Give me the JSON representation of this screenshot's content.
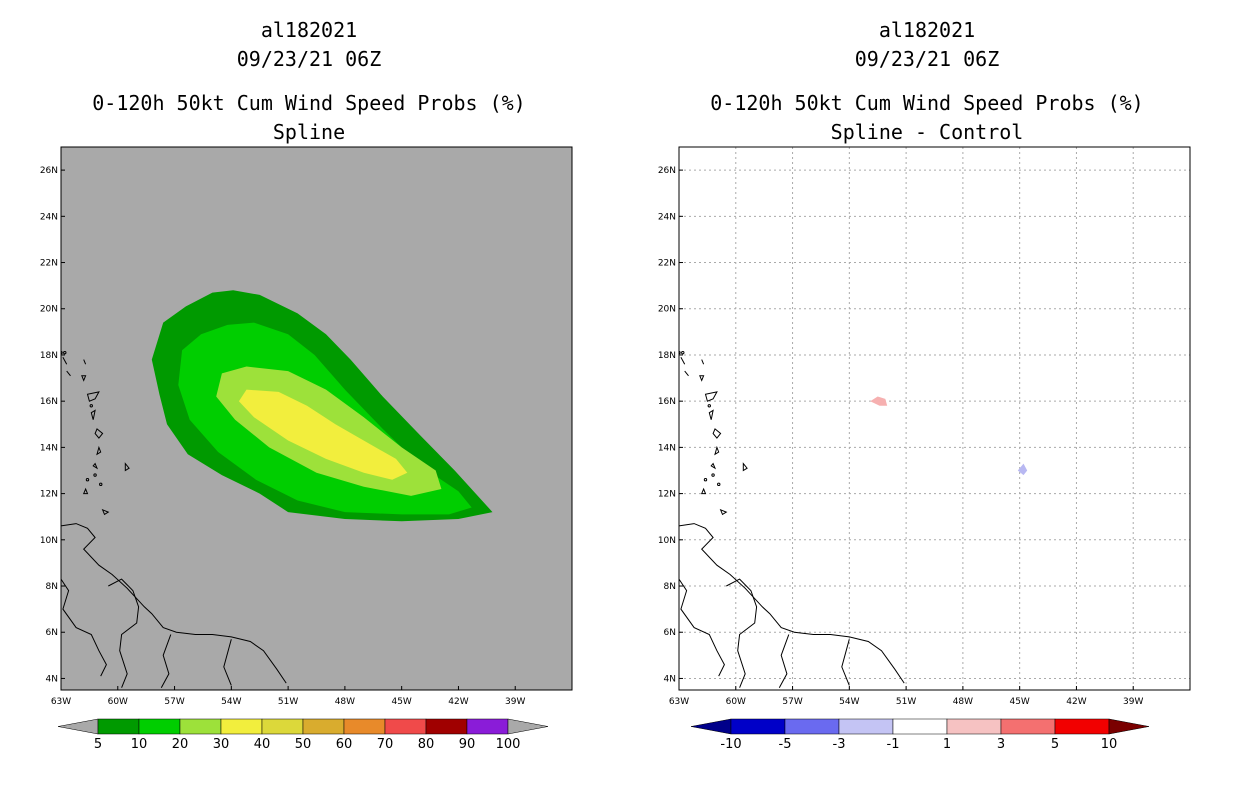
{
  "left": {
    "title_line1": "al182021",
    "title_line2": "09/23/21 06Z",
    "title_line3": "0-120h 50kt Cum Wind Speed Probs (%)",
    "title_line4": "Spline"
  },
  "right": {
    "title_line1": "al182021",
    "title_line2": "09/23/21 06Z",
    "title_line3": "0-120h 50kt Cum Wind Speed Probs (%)",
    "title_line4": "Spline - Control"
  },
  "chart_data": [
    {
      "type": "heatmap",
      "title": "0-120h 50kt Cum Wind Speed Probs (%) Spline",
      "variable": "cumulative 50kt wind speed probability (%)",
      "xlim": [
        -63,
        -36
      ],
      "ylim": [
        3.5,
        27
      ],
      "x_ticks": [
        -63,
        -60,
        -57,
        -54,
        -51,
        -48,
        -45,
        -42,
        -39
      ],
      "x_tick_labels": [
        "63W",
        "60W",
        "57W",
        "54W",
        "51W",
        "48W",
        "45W",
        "42W",
        "39W"
      ],
      "y_ticks": [
        4,
        6,
        8,
        10,
        12,
        14,
        16,
        18,
        20,
        22,
        24,
        26
      ],
      "y_tick_labels": [
        "4N",
        "6N",
        "8N",
        "10N",
        "12N",
        "14N",
        "16N",
        "18N",
        "20N",
        "22N",
        "24N",
        "26N"
      ],
      "background_color": "#a9a9a9",
      "contour_levels": [
        5,
        10,
        20,
        30
      ],
      "contours": [
        {
          "level": 5,
          "color": "#009a00",
          "points": [
            [
              -53.9,
              20.8
            ],
            [
              -52.5,
              20.6
            ],
            [
              -50.5,
              19.8
            ],
            [
              -49,
              18.9
            ],
            [
              -47.7,
              17.8
            ],
            [
              -46,
              16.2
            ],
            [
              -44,
              14.5
            ],
            [
              -42.2,
              13
            ],
            [
              -40.2,
              11.2
            ],
            [
              -42,
              10.9
            ],
            [
              -45,
              10.8
            ],
            [
              -48,
              10.9
            ],
            [
              -51,
              11.2
            ],
            [
              -52.5,
              12
            ],
            [
              -54.5,
              12.8
            ],
            [
              -56.3,
              13.7
            ],
            [
              -57.4,
              15
            ],
            [
              -57.8,
              16.3
            ],
            [
              -58.2,
              17.8
            ],
            [
              -57.6,
              19.4
            ],
            [
              -56.4,
              20.1
            ],
            [
              -55,
              20.7
            ]
          ]
        },
        {
          "level": 10,
          "color": "#00ce00",
          "points": [
            [
              -52.8,
              19.4
            ],
            [
              -51,
              18.9
            ],
            [
              -49.6,
              18
            ],
            [
              -48,
              16.5
            ],
            [
              -46,
              14.8
            ],
            [
              -44,
              13.2
            ],
            [
              -42,
              12.1
            ],
            [
              -41.3,
              11.4
            ],
            [
              -42.5,
              11.1
            ],
            [
              -45,
              11.1
            ],
            [
              -48,
              11.2
            ],
            [
              -50.5,
              11.7
            ],
            [
              -52.7,
              12.6
            ],
            [
              -54.7,
              13.8
            ],
            [
              -56.2,
              15.2
            ],
            [
              -56.8,
              16.7
            ],
            [
              -56.6,
              18.2
            ],
            [
              -55.6,
              18.9
            ],
            [
              -54.2,
              19.3
            ]
          ]
        },
        {
          "level": 20,
          "color": "#9de13a",
          "points": [
            [
              -53.2,
              17.5
            ],
            [
              -51,
              17.3
            ],
            [
              -49,
              16.5
            ],
            [
              -47,
              15.3
            ],
            [
              -45,
              14
            ],
            [
              -43.2,
              13
            ],
            [
              -42.9,
              12.2
            ],
            [
              -44.5,
              11.9
            ],
            [
              -47,
              12.3
            ],
            [
              -49.5,
              12.9
            ],
            [
              -52,
              14
            ],
            [
              -53.8,
              15.2
            ],
            [
              -54.8,
              16.2
            ],
            [
              -54.5,
              17.2
            ]
          ]
        },
        {
          "level": 30,
          "color": "#f2ee3d",
          "points": [
            [
              -53.2,
              16.5
            ],
            [
              -51.5,
              16.4
            ],
            [
              -50,
              15.8
            ],
            [
              -48.5,
              15
            ],
            [
              -46.8,
              14.2
            ],
            [
              -45.3,
              13.5
            ],
            [
              -44.7,
              12.9
            ],
            [
              -45.5,
              12.6
            ],
            [
              -47,
              12.9
            ],
            [
              -49,
              13.5
            ],
            [
              -51,
              14.3
            ],
            [
              -52.8,
              15.3
            ],
            [
              -53.6,
              16
            ]
          ]
        }
      ],
      "colorbar": {
        "labels": [
          "5",
          "10",
          "20",
          "30",
          "40",
          "50",
          "60",
          "70",
          "80",
          "90",
          "100"
        ],
        "colors": [
          "#009a00",
          "#00ce00",
          "#9de13a",
          "#f2ee3d",
          "#dcd83a",
          "#d9ac2e",
          "#e88a2a",
          "#f04a4a",
          "#a00000",
          "#8a1cd8"
        ],
        "under_color": "#a9a9a9",
        "over_color": "#a9a9a9"
      }
    },
    {
      "type": "heatmap",
      "title": "0-120h 50kt Cum Wind Speed Probs (%) Spline - Control",
      "variable": "difference in cumulative 50kt wind speed probability (%)",
      "xlim": [
        -63,
        -36
      ],
      "ylim": [
        3.5,
        27
      ],
      "x_ticks": [
        -63,
        -60,
        -57,
        -54,
        -51,
        -48,
        -45,
        -42,
        -39
      ],
      "x_tick_labels": [
        "63W",
        "60W",
        "57W",
        "54W",
        "51W",
        "48W",
        "45W",
        "42W",
        "39W"
      ],
      "y_ticks": [
        4,
        6,
        8,
        10,
        12,
        14,
        16,
        18,
        20,
        22,
        24,
        26
      ],
      "y_tick_labels": [
        "4N",
        "6N",
        "8N",
        "10N",
        "12N",
        "14N",
        "16N",
        "18N",
        "20N",
        "22N",
        "24N",
        "26N"
      ],
      "background_color": "#ffffff",
      "grid": true,
      "features": [
        {
          "description": "positive difference patch",
          "value_range": [
            3,
            5
          ],
          "color": "#f6b0b0",
          "points": [
            [
              -52.9,
              16.0
            ],
            [
              -52.5,
              16.2
            ],
            [
              -52.1,
              16.1
            ],
            [
              -52.0,
              15.8
            ],
            [
              -52.4,
              15.8
            ]
          ]
        },
        {
          "description": "negative difference patch",
          "value_range": [
            -3,
            -1
          ],
          "color": "#b8b8f2",
          "points": [
            [
              -45.1,
              13.0
            ],
            [
              -44.8,
              13.3
            ],
            [
              -44.6,
              13.0
            ],
            [
              -44.8,
              12.8
            ]
          ]
        }
      ],
      "colorbar": {
        "labels": [
          "-10",
          "-5",
          "-3",
          "-1",
          "1",
          "3",
          "5",
          "10"
        ],
        "colors": [
          "#0000c8",
          "#6a6af0",
          "#c4c4f4",
          "#ffffff",
          "#f6c2c2",
          "#f47070",
          "#f20000"
        ],
        "under_color": "#00008a",
        "over_color": "#7a0000"
      }
    }
  ]
}
